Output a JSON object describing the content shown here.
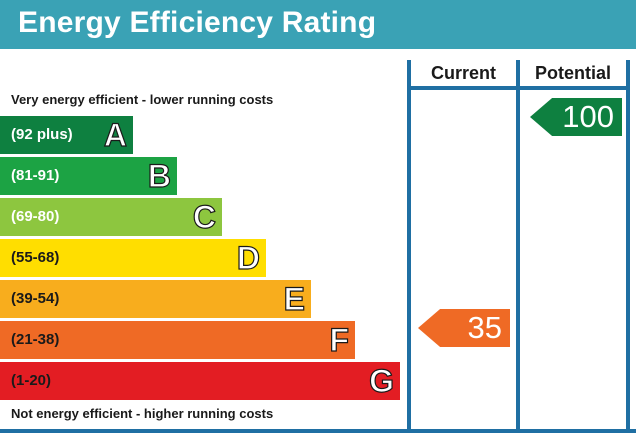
{
  "header": {
    "title": "Energy Efficiency Rating"
  },
  "columns": {
    "current": "Current",
    "potential": "Potential"
  },
  "notes": {
    "top": "Very energy efficient - lower running costs",
    "bottom": "Not energy efficient - higher running costs"
  },
  "bands": [
    {
      "letter": "A",
      "range": "(92 plus)",
      "color": "#0e8040"
    },
    {
      "letter": "B",
      "range": "(81-91)",
      "color": "#1ca344"
    },
    {
      "letter": "C",
      "range": "(69-80)",
      "color": "#8dc63f"
    },
    {
      "letter": "D",
      "range": "(55-68)",
      "color": "#ffde00"
    },
    {
      "letter": "E",
      "range": "(39-54)",
      "color": "#f8ad1d"
    },
    {
      "letter": "F",
      "range": "(21-38)",
      "color": "#ef6a25"
    },
    {
      "letter": "G",
      "range": "(1-20)",
      "color": "#e31d23"
    }
  ],
  "ratings": {
    "current": {
      "value": "35",
      "band": "F",
      "color": "#ef6a25"
    },
    "potential": {
      "value": "100",
      "band": "A",
      "color": "#0e8040"
    }
  }
}
